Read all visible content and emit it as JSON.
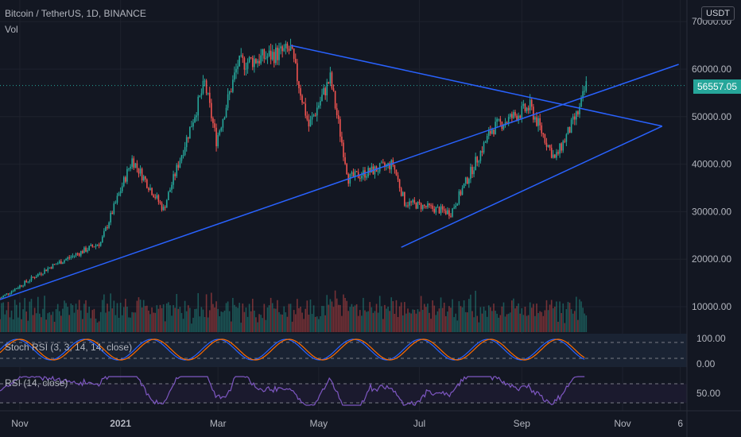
{
  "header": {
    "title": "Bitcoin / TetherUS, 1D, BINANCE",
    "volume_label": "Vol",
    "currency_badge": "USDT"
  },
  "price_axis": {
    "labels": [
      "70000.00",
      "60000.00",
      "50000.00",
      "40000.00",
      "30000.00",
      "20000.00",
      "10000.00"
    ],
    "current_price": "56557.05"
  },
  "time_axis": {
    "labels": [
      "Nov",
      "2021",
      "Mar",
      "May",
      "Jul",
      "Sep",
      "Nov",
      "6"
    ]
  },
  "indicators": {
    "stoch_label": "Stoch RSI (3, 3, 14, 14, close)",
    "stoch_axis": [
      "100.00",
      "0.00"
    ],
    "rsi_label": "RSI (14, close)",
    "rsi_axis": [
      "50.00"
    ]
  },
  "colors": {
    "background": "#131722",
    "up": "#26a69a",
    "down": "#ef5350",
    "trendline": "#2962ff",
    "stoch_k": "#2962ff",
    "stoch_d": "#ff6d00",
    "rsi": "#7e57c2"
  },
  "chart_data": {
    "type": "candlestick",
    "x_range": [
      "2020-10-20",
      "2021-12-10"
    ],
    "y_range": [
      0,
      72000
    ],
    "current_price": 56557.05,
    "key_points": [
      {
        "date": "2020-10-20",
        "close": 11800
      },
      {
        "date": "2020-11-20",
        "close": 18500
      },
      {
        "date": "2020-12-20",
        "close": 23500
      },
      {
        "date": "2021-01-08",
        "close": 41000
      },
      {
        "date": "2021-01-27",
        "close": 30500
      },
      {
        "date": "2021-02-21",
        "close": 57000
      },
      {
        "date": "2021-02-28",
        "close": 45000
      },
      {
        "date": "2021-03-13",
        "close": 61000
      },
      {
        "date": "2021-04-14",
        "close": 64000
      },
      {
        "date": "2021-04-25",
        "close": 48000
      },
      {
        "date": "2021-05-08",
        "close": 58000
      },
      {
        "date": "2021-05-19",
        "close": 37000
      },
      {
        "date": "2021-06-15",
        "close": 40000
      },
      {
        "date": "2021-06-22",
        "close": 32000
      },
      {
        "date": "2021-07-20",
        "close": 29800
      },
      {
        "date": "2021-08-14",
        "close": 47500
      },
      {
        "date": "2021-09-06",
        "close": 52000
      },
      {
        "date": "2021-09-21",
        "close": 41000
      },
      {
        "date": "2021-10-06",
        "close": 51500
      },
      {
        "date": "2021-10-10",
        "close": 56557.05
      }
    ],
    "trendlines": [
      {
        "from": {
          "date": "2020-10-20",
          "value": 11500
        },
        "to": {
          "date": "2021-12-05",
          "value": 61000
        }
      },
      {
        "from": {
          "date": "2021-04-14",
          "value": 65000
        },
        "to": {
          "date": "2021-11-25",
          "value": 48000
        }
      },
      {
        "from": {
          "date": "2021-06-20",
          "value": 22500
        },
        "to": {
          "date": "2021-11-25",
          "value": 48000
        }
      }
    ]
  }
}
